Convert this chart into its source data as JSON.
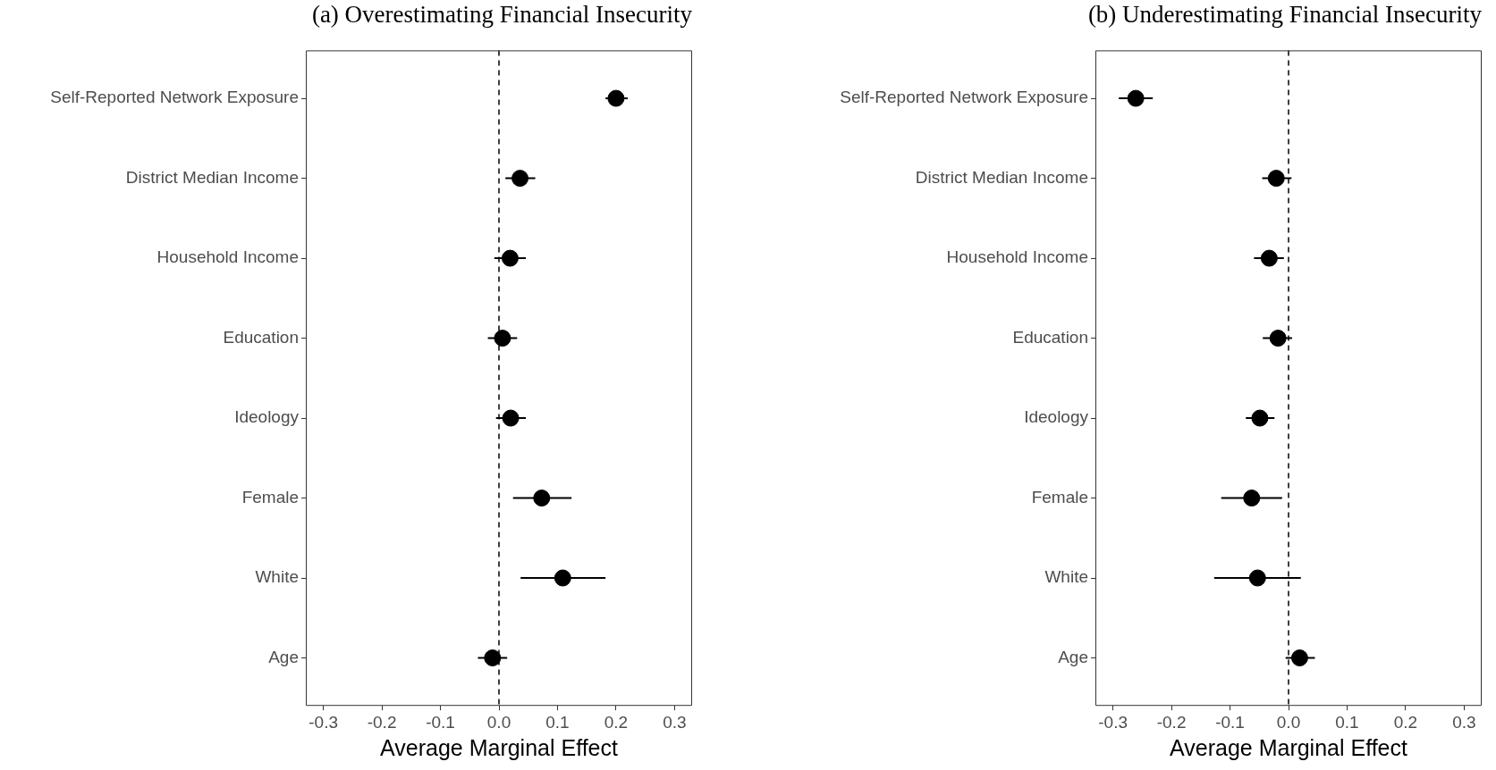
{
  "chart_data": [
    {
      "type": "scatter",
      "orientation": "horizontal",
      "title": "(a) Overestimating Financial Insecurity",
      "xlabel": "Average Marginal Effect",
      "categories": [
        "Self-Reported Network Exposure",
        "District Median Income",
        "Household Income",
        "Education",
        "Ideology",
        "Female",
        "White",
        "Age"
      ],
      "values": [
        0.2,
        0.036,
        0.019,
        0.006,
        0.02,
        0.073,
        0.109,
        -0.011
      ],
      "errors": [
        [
          0.182,
          0.22
        ],
        [
          0.011,
          0.062
        ],
        [
          -0.008,
          0.046
        ],
        [
          -0.019,
          0.031
        ],
        [
          -0.005,
          0.046
        ],
        [
          0.024,
          0.124
        ],
        [
          0.037,
          0.182
        ],
        [
          -0.036,
          0.014
        ]
      ],
      "color": "#000000",
      "marker": "circle",
      "xlim": [
        -0.33,
        0.33
      ],
      "xticks": [
        {
          "value": -0.3,
          "label": "-0.3"
        },
        {
          "value": -0.2,
          "label": "-0.2"
        },
        {
          "value": -0.1,
          "label": "-0.1"
        },
        {
          "value": 0,
          "label": "0.0"
        },
        {
          "value": 0.1,
          "label": "0.1"
        },
        {
          "value": 0.2,
          "label": "0.2"
        },
        {
          "value": 0.3,
          "label": "0.3"
        }
      ],
      "ref_lines": [
        {
          "axis": "x",
          "value": 0,
          "line_style": "dashed",
          "color": "#000000"
        }
      ],
      "grid": false,
      "legend": false
    },
    {
      "type": "scatter",
      "orientation": "horizontal",
      "title": "(b) Underestimating Financial Insecurity",
      "xlabel": "Average Marginal Effect",
      "categories": [
        "Self-Reported Network Exposure",
        "District Median Income",
        "Household Income",
        "Education",
        "Ideology",
        "Female",
        "White",
        "Age"
      ],
      "values": [
        -0.261,
        -0.021,
        -0.033,
        -0.018,
        -0.049,
        -0.063,
        -0.053,
        0.019
      ],
      "errors": [
        [
          -0.29,
          -0.232
        ],
        [
          -0.045,
          0.005
        ],
        [
          -0.059,
          -0.008
        ],
        [
          -0.044,
          0.006
        ],
        [
          -0.073,
          -0.024
        ],
        [
          -0.115,
          -0.011
        ],
        [
          -0.127,
          0.021
        ],
        [
          -0.005,
          0.045
        ]
      ],
      "color": "#000000",
      "marker": "circle",
      "xlim": [
        -0.33,
        0.33
      ],
      "xticks": [
        {
          "value": -0.3,
          "label": "-0.3"
        },
        {
          "value": -0.2,
          "label": "-0.2"
        },
        {
          "value": -0.1,
          "label": "-0.1"
        },
        {
          "value": 0,
          "label": "0.0"
        },
        {
          "value": 0.1,
          "label": "0.1"
        },
        {
          "value": 0.2,
          "label": "0.2"
        },
        {
          "value": 0.3,
          "label": "0.3"
        }
      ],
      "ref_lines": [
        {
          "axis": "x",
          "value": 0,
          "line_style": "dashed",
          "color": "#000000"
        }
      ],
      "grid": false,
      "legend": false
    }
  ]
}
